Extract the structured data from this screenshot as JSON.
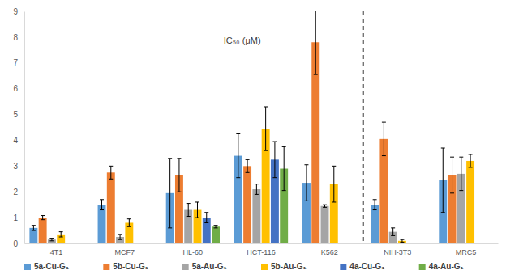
{
  "chart_data": {
    "type": "bar",
    "title": "IC₅₀ (μM)",
    "categories": [
      "4T1",
      "MCF7",
      "HL-60",
      "HCT-116",
      "K562",
      "NIH-3T3",
      "MRC5"
    ],
    "series": [
      {
        "name": "5a-Cu-G₁",
        "color": "#5b9bd5",
        "values": [
          0.6,
          1.5,
          1.95,
          3.4,
          2.35,
          1.5,
          2.45
        ],
        "errors": [
          0.1,
          0.2,
          1.35,
          0.85,
          0.7,
          0.2,
          1.25
        ]
      },
      {
        "name": "5b-Cu-G₁",
        "color": "#ed7d31",
        "values": [
          1.0,
          2.75,
          2.65,
          3.0,
          7.8,
          4.05,
          2.65
        ],
        "errors": [
          0.08,
          0.25,
          0.65,
          0.25,
          1.25,
          0.65,
          0.7
        ]
      },
      {
        "name": "5a-Au-G₁",
        "color": "#a5a5a5",
        "values": [
          0.15,
          0.25,
          1.3,
          2.1,
          1.45,
          0.45,
          2.7
        ],
        "errors": [
          0.05,
          0.1,
          0.25,
          0.2,
          0.05,
          0.15,
          0.65
        ]
      },
      {
        "name": "5b-Au-G₁",
        "color": "#ffc000",
        "values": [
          0.35,
          0.8,
          1.3,
          4.45,
          2.3,
          0.1,
          3.2
        ],
        "errors": [
          0.1,
          0.15,
          0.3,
          0.85,
          0.7,
          0.05,
          0.25
        ]
      },
      {
        "name": "4a-Cu-G₁",
        "color": "#4472c4",
        "values": [
          null,
          null,
          1.0,
          3.25,
          null,
          null,
          null
        ],
        "errors": [
          null,
          null,
          0.2,
          0.7,
          null,
          null,
          null
        ]
      },
      {
        "name": "4a-Au-G₁",
        "color": "#70ad47",
        "values": [
          null,
          null,
          0.65,
          2.9,
          null,
          null,
          null
        ],
        "errors": [
          null,
          null,
          0.05,
          0.85,
          null,
          null,
          null
        ]
      }
    ],
    "ylim": [
      0,
      9
    ],
    "yticks": [
      0,
      1,
      2,
      3,
      4,
      5,
      6,
      7,
      8,
      9
    ],
    "grid": false,
    "legend": "bottom"
  }
}
